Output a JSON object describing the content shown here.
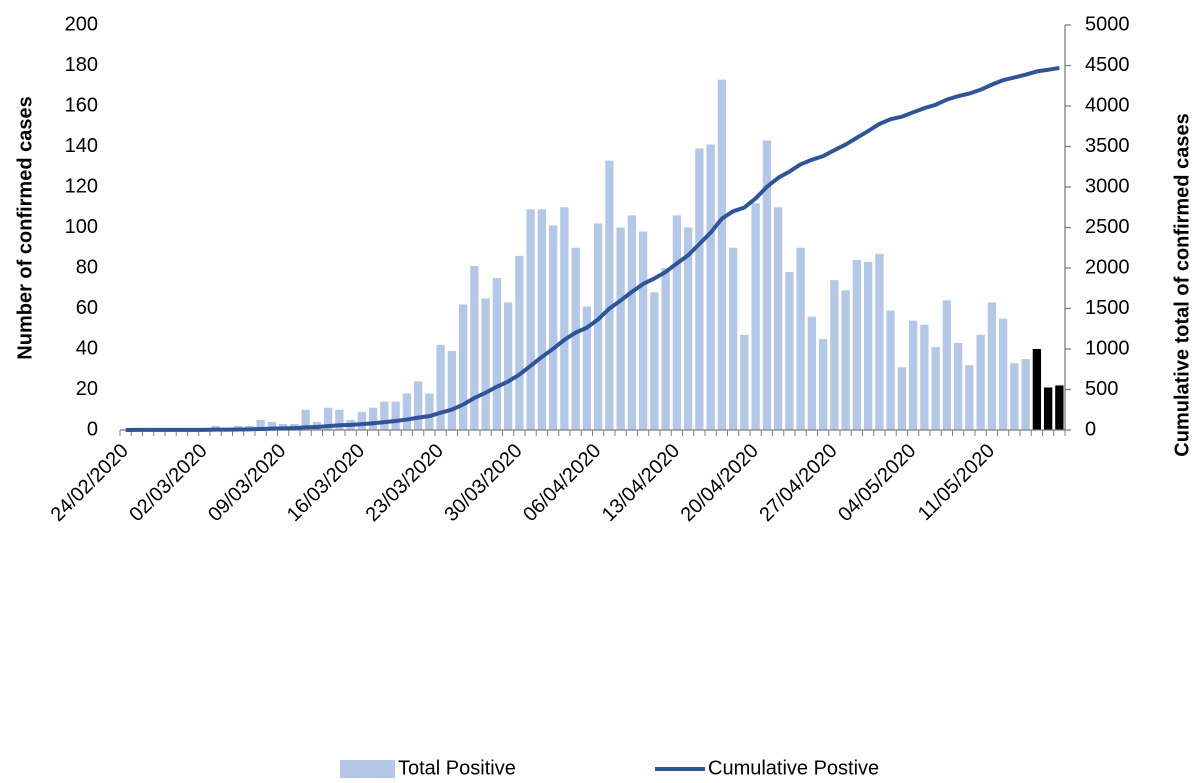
{
  "chart_data": {
    "type": "bar",
    "y_label": "Number of confirmed cases",
    "y2_label": "Cumulative total of confirmed cases",
    "categories": [
      "24/02/2020",
      null,
      null,
      null,
      null,
      null,
      null,
      "02/03/2020",
      null,
      null,
      null,
      null,
      null,
      null,
      "09/03/2020",
      null,
      null,
      null,
      null,
      null,
      null,
      "16/03/2020",
      null,
      null,
      null,
      null,
      null,
      null,
      "23/03/2020",
      null,
      null,
      null,
      null,
      null,
      null,
      "30/03/2020",
      null,
      null,
      null,
      null,
      null,
      null,
      "06/04/2020",
      null,
      null,
      null,
      null,
      null,
      null,
      "13/04/2020",
      null,
      null,
      null,
      null,
      null,
      null,
      "20/04/2020",
      null,
      null,
      null,
      null,
      null,
      null,
      "27/04/2020",
      null,
      null,
      null,
      null,
      null,
      null,
      "04/05/2020",
      null,
      null,
      null,
      null,
      null,
      null,
      "11/05/2020",
      null,
      null,
      null,
      null,
      null,
      null
    ],
    "series": [
      {
        "name": "Total Positive",
        "type": "bar",
        "color": "#b4c7e7",
        "bar_colors": [
          "#b4c7e7",
          "#b4c7e7",
          "#b4c7e7",
          "#b4c7e7",
          "#b4c7e7",
          "#b4c7e7",
          "#b4c7e7",
          "#b4c7e7",
          "#b4c7e7",
          "#b4c7e7",
          "#b4c7e7",
          "#b4c7e7",
          "#b4c7e7",
          "#b4c7e7",
          "#b4c7e7",
          "#b4c7e7",
          "#b4c7e7",
          "#b4c7e7",
          "#b4c7e7",
          "#b4c7e7",
          "#b4c7e7",
          "#b4c7e7",
          "#b4c7e7",
          "#b4c7e7",
          "#b4c7e7",
          "#b4c7e7",
          "#b4c7e7",
          "#b4c7e7",
          "#b4c7e7",
          "#b4c7e7",
          "#b4c7e7",
          "#b4c7e7",
          "#b4c7e7",
          "#b4c7e7",
          "#b4c7e7",
          "#b4c7e7",
          "#b4c7e7",
          "#b4c7e7",
          "#b4c7e7",
          "#b4c7e7",
          "#b4c7e7",
          "#b4c7e7",
          "#b4c7e7",
          "#b4c7e7",
          "#b4c7e7",
          "#b4c7e7",
          "#b4c7e7",
          "#b4c7e7",
          "#b4c7e7",
          "#b4c7e7",
          "#b4c7e7",
          "#b4c7e7",
          "#b4c7e7",
          "#b4c7e7",
          "#b4c7e7",
          "#b4c7e7",
          "#b4c7e7",
          "#b4c7e7",
          "#b4c7e7",
          "#b4c7e7",
          "#b4c7e7",
          "#b4c7e7",
          "#b4c7e7",
          "#b4c7e7",
          "#b4c7e7",
          "#b4c7e7",
          "#b4c7e7",
          "#b4c7e7",
          "#b4c7e7",
          "#b4c7e7",
          "#b4c7e7",
          "#b4c7e7",
          "#b4c7e7",
          "#b4c7e7",
          "#b4c7e7",
          "#b4c7e7",
          "#b4c7e7",
          "#b4c7e7",
          "#b4c7e7",
          "#b4c7e7",
          "#b4c7e7",
          "#000000",
          "#000000",
          "#000000"
        ],
        "values": [
          0,
          1,
          1,
          0,
          0,
          0,
          0,
          0,
          2,
          0,
          2,
          2,
          5,
          4,
          3,
          3,
          10,
          4,
          11,
          10,
          5,
          9,
          11,
          14,
          14,
          18,
          24,
          18,
          42,
          39,
          62,
          81,
          65,
          75,
          63,
          86,
          109,
          109,
          101,
          110,
          90,
          61,
          102,
          133,
          100,
          106,
          98,
          68,
          80,
          106,
          100,
          139,
          141,
          173,
          90,
          47,
          112,
          143,
          110,
          78,
          90,
          56,
          45,
          74,
          69,
          84,
          83,
          87,
          59,
          31,
          54,
          52,
          41,
          64,
          43,
          32,
          47,
          63,
          55,
          33,
          35,
          40,
          21,
          22
        ]
      },
      {
        "name": "Cumulative Postive",
        "type": "line",
        "axis": "y2",
        "color": "#2f5597",
        "values": [
          0,
          1,
          2,
          2,
          2,
          2,
          2,
          2,
          4,
          4,
          6,
          8,
          13,
          17,
          20,
          23,
          33,
          37,
          48,
          58,
          63,
          72,
          83,
          97,
          111,
          129,
          153,
          171,
          213,
          252,
          314,
          395,
          460,
          535,
          598,
          684,
          793,
          902,
          1003,
          1113,
          1203,
          1264,
          1366,
          1499,
          1599,
          1705,
          1803,
          1871,
          1951,
          2057,
          2157,
          2296,
          2437,
          2610,
          2700,
          2747,
          2859,
          3002,
          3112,
          3190,
          3280,
          3336,
          3381,
          3455,
          3524,
          3608,
          3691,
          3778,
          3837,
          3868,
          3922,
          3974,
          4015,
          4079,
          4122,
          4154,
          4201,
          4264,
          4319,
          4352,
          4387,
          4427,
          4448,
          4470
        ]
      }
    ],
    "ylim": [
      0,
      200
    ],
    "yticks": [
      0,
      20,
      40,
      60,
      80,
      100,
      120,
      140,
      160,
      180,
      200
    ],
    "y2lim": [
      0,
      5000
    ],
    "y2ticks": [
      0,
      500,
      1000,
      1500,
      2000,
      2500,
      3000,
      3500,
      4000,
      4500,
      5000
    ],
    "grid": false,
    "legend": "bottom"
  }
}
